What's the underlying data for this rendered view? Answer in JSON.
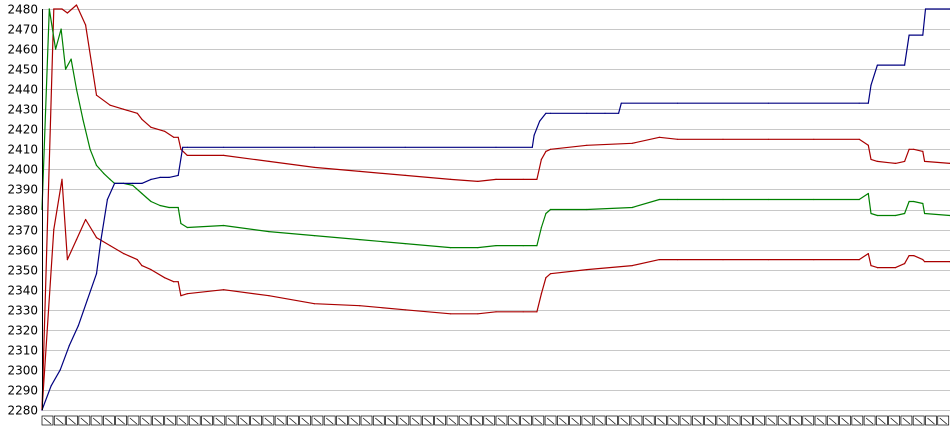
{
  "chart_data": {
    "type": "line",
    "title": "",
    "xlabel": "",
    "ylabel": "",
    "ylim": [
      2280,
      2480
    ],
    "yticks": [
      2280,
      2290,
      2300,
      2310,
      2320,
      2330,
      2340,
      2350,
      2360,
      2370,
      2380,
      2390,
      2400,
      2410,
      2420,
      2430,
      2440,
      2450,
      2460,
      2470,
      2480
    ],
    "xlim": [
      0,
      100
    ],
    "grid": true,
    "legend": "none",
    "colors": {
      "upper_band": "#aa0000",
      "middle": "#008000",
      "lower_band": "#aa0000",
      "cumulative": "#000080",
      "grid": "#c8c8c8"
    },
    "series": [
      {
        "color": "#aa0000",
        "x": [
          0,
          1.3,
          2.2,
          2.8,
          3.8,
          4.8,
          6,
          7.5,
          9,
          10.5,
          11,
          12,
          13.5,
          14.5,
          15,
          15.3,
          16,
          20,
          25,
          30,
          35,
          40,
          45,
          48,
          50,
          53,
          54.5,
          55,
          55.5,
          56,
          60,
          65,
          68,
          70,
          75,
          80,
          85,
          90,
          91,
          91.3,
          92,
          94,
          95,
          95.5,
          96,
          97,
          97.2,
          100
        ],
        "y": [
          2280,
          2480,
          2480,
          2478,
          2482,
          2472,
          2437,
          2432,
          2430,
          2428,
          2425,
          2421,
          2419,
          2416,
          2416,
          2410,
          2407,
          2407,
          2404,
          2401,
          2399,
          2397,
          2395,
          2394,
          2395,
          2395,
          2395,
          2405,
          2409,
          2410,
          2412,
          2413,
          2416,
          2415,
          2415,
          2415,
          2415,
          2415,
          2412,
          2405,
          2404,
          2403,
          2404,
          2410,
          2410,
          2409,
          2404,
          2403
        ]
      },
      {
        "color": "#008000",
        "x": [
          0,
          0.8,
          1.5,
          2.1,
          2.6,
          3.2,
          3.8,
          4.5,
          5.3,
          6,
          6.8,
          7.5,
          8,
          9,
          10,
          11,
          11.5,
          12,
          13,
          14,
          15,
          15.3,
          16,
          20,
          25,
          30,
          35,
          40,
          45,
          48,
          50,
          53,
          54.5,
          55,
          55.5,
          56,
          60,
          65,
          68,
          70,
          75,
          80,
          85,
          90,
          91,
          91.3,
          92,
          94,
          95,
          95.5,
          96,
          97,
          97.2,
          100
        ],
        "y": [
          2380,
          2480,
          2460,
          2470,
          2450,
          2455,
          2440,
          2425,
          2410,
          2402,
          2398,
          2395,
          2393,
          2393,
          2392,
          2388,
          2386,
          2384,
          2382,
          2381,
          2381,
          2373,
          2371,
          2372,
          2369,
          2367,
          2365,
          2363,
          2361,
          2361,
          2362,
          2362,
          2362,
          2371,
          2378,
          2380,
          2380,
          2381,
          2385,
          2385,
          2385,
          2385,
          2385,
          2385,
          2388,
          2378,
          2377,
          2377,
          2378,
          2384,
          2384,
          2383,
          2378,
          2377
        ]
      },
      {
        "color": "#aa0000",
        "x": [
          0,
          1.3,
          2.2,
          2.8,
          3.8,
          4.8,
          6,
          7.5,
          9,
          10.5,
          11,
          12,
          13.5,
          14.5,
          15,
          15.3,
          16,
          20,
          25,
          30,
          35,
          40,
          45,
          48,
          50,
          53,
          54.5,
          55,
          55.5,
          56,
          60,
          65,
          68,
          70,
          75,
          80,
          85,
          90,
          91,
          91.3,
          92,
          94,
          95,
          95.5,
          96,
          97,
          97.2,
          100
        ],
        "y": [
          2280,
          2370,
          2395,
          2355,
          2365,
          2375,
          2366,
          2362,
          2358,
          2355,
          2352,
          2350,
          2346,
          2344,
          2344,
          2337,
          2338,
          2340,
          2337,
          2333,
          2332,
          2330,
          2328,
          2328,
          2329,
          2329,
          2329,
          2338,
          2346,
          2348,
          2350,
          2352,
          2355,
          2355,
          2355,
          2355,
          2355,
          2355,
          2358,
          2352,
          2351,
          2351,
          2353,
          2357,
          2357,
          2355,
          2354,
          2354
        ]
      },
      {
        "color": "#000080",
        "x": [
          0,
          1,
          2,
          3,
          4,
          5,
          6,
          6.5,
          7.2,
          8,
          9,
          10,
          11,
          12,
          13,
          14,
          15,
          15.5,
          16,
          20,
          30,
          40,
          50,
          54,
          54.2,
          54.8,
          55.5,
          56,
          60,
          62,
          63.5,
          63.8,
          70,
          80,
          90,
          91,
          91.3,
          92,
          95,
          95.5,
          97,
          97.3,
          100
        ],
        "y": [
          2280,
          2292,
          2300,
          2312,
          2322,
          2335,
          2348,
          2365,
          2385,
          2393,
          2393,
          2393,
          2393,
          2395,
          2396,
          2396,
          2397,
          2411,
          2411,
          2411,
          2411,
          2411,
          2411,
          2411,
          2417,
          2424,
          2428,
          2428,
          2428,
          2428,
          2428,
          2433,
          2433,
          2433,
          2433,
          2433,
          2442,
          2452,
          2452,
          2467,
          2467,
          2480,
          2480
        ]
      }
    ]
  }
}
